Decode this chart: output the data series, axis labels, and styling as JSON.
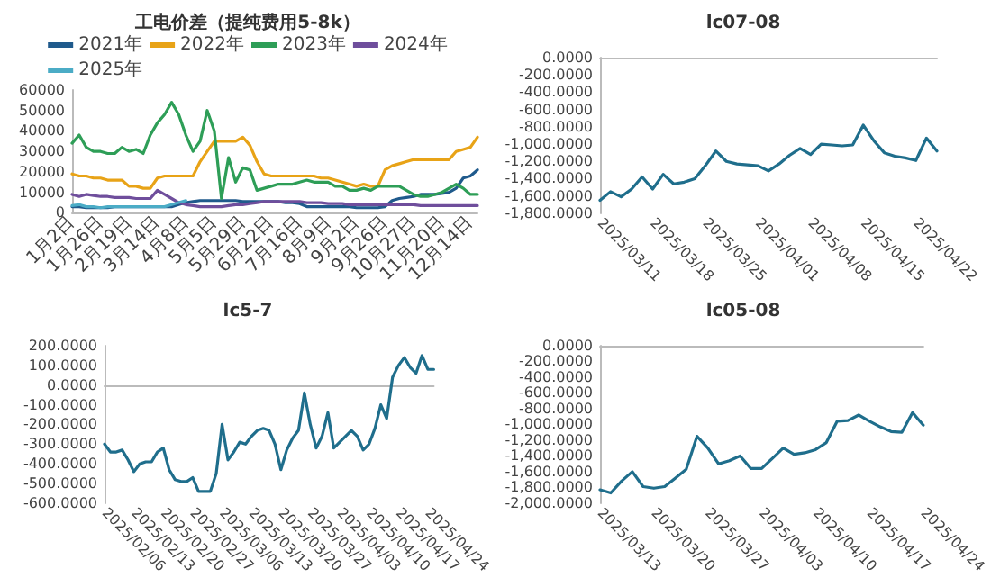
{
  "chart_data": [
    {
      "type": "line",
      "title": "工电价差（提纯费用5-8k）",
      "categories": [
        "1月2日",
        null,
        null,
        null,
        "1月26日",
        null,
        null,
        null,
        "2月19日",
        null,
        null,
        null,
        "3月14日",
        null,
        null,
        null,
        "4月8日",
        null,
        null,
        null,
        "5月5日",
        null,
        null,
        null,
        "5月29日",
        null,
        null,
        null,
        "6月22日",
        null,
        null,
        null,
        "7月16日",
        null,
        null,
        null,
        "8月9日",
        null,
        null,
        null,
        "9月2日",
        null,
        null,
        null,
        "9月26日",
        null,
        null,
        null,
        "10月27日",
        null,
        null,
        null,
        "11月20日",
        null,
        null,
        null,
        "12月14日",
        null
      ],
      "series": [
        {
          "name": "2021年",
          "color": "#1f5a8c",
          "values": [
            3000,
            3000,
            2500,
            2500,
            2500,
            2500,
            3000,
            3000,
            3000,
            3000,
            3000,
            3000,
            3000,
            3000,
            3000,
            4000,
            5000,
            5500,
            6000,
            6000,
            6000,
            6000,
            6000,
            6000,
            5500,
            5500,
            5500,
            5500,
            5500,
            5500,
            5000,
            5000,
            4500,
            3000,
            3000,
            3000,
            3000,
            3000,
            3000,
            3000,
            2500,
            2500,
            2500,
            2500,
            3000,
            6000,
            7000,
            7500,
            8000,
            9000,
            9000,
            9000,
            9500,
            10000,
            12000,
            17000,
            18000,
            21000
          ]
        },
        {
          "name": "2022年",
          "color": "#e8a317",
          "values": [
            19000,
            18000,
            18000,
            17000,
            17000,
            16000,
            16000,
            16000,
            13000,
            13000,
            12000,
            12000,
            17000,
            18000,
            18000,
            18000,
            18000,
            18000,
            25000,
            30000,
            35000,
            35000,
            35000,
            35000,
            37000,
            33000,
            25000,
            19000,
            18000,
            18000,
            18000,
            18000,
            18000,
            18000,
            18000,
            17000,
            17000,
            16000,
            15000,
            14000,
            13000,
            14000,
            13000,
            13000,
            21000,
            23000,
            24000,
            25000,
            26000,
            26000,
            26000,
            26000,
            26000,
            26000,
            30000,
            31000,
            32000,
            37000
          ]
        },
        {
          "name": "2023年",
          "color": "#2e9e57",
          "values": [
            34000,
            38000,
            32000,
            30000,
            30000,
            29000,
            29000,
            32000,
            30000,
            31000,
            29000,
            38000,
            44000,
            48000,
            54000,
            48000,
            38000,
            30000,
            35000,
            50000,
            40000,
            7000,
            27000,
            15000,
            22000,
            21000,
            11000,
            12000,
            13000,
            14000,
            14000,
            14000,
            15000,
            16000,
            15000,
            15000,
            15000,
            13000,
            13000,
            11000,
            11000,
            12000,
            11000,
            13000,
            13000,
            13000,
            13000,
            11000,
            9000,
            8000,
            8000,
            9000,
            10000,
            12000,
            14000,
            12000,
            9000,
            9000
          ]
        },
        {
          "name": "2024年",
          "color": "#6f4e9c",
          "values": [
            9000,
            8000,
            9000,
            8500,
            8000,
            8000,
            7500,
            7500,
            7500,
            7000,
            7000,
            7000,
            11000,
            9000,
            7000,
            5000,
            4000,
            3500,
            3000,
            3000,
            3000,
            3000,
            3500,
            4000,
            4000,
            4500,
            5000,
            5500,
            5500,
            5500,
            5500,
            5500,
            5500,
            5000,
            5000,
            5000,
            4500,
            4500,
            4500,
            4000,
            4000,
            4000,
            4000,
            4000,
            4000,
            4000,
            4000,
            4000,
            4000,
            3500,
            3500,
            3500,
            3500,
            3500,
            3500,
            3500,
            3500,
            3500
          ]
        },
        {
          "name": "2025年",
          "color": "#4bacc6",
          "values": [
            3500,
            4000,
            3000,
            3000,
            2500,
            3000,
            3000,
            3000,
            3000,
            3000,
            3000,
            3000,
            3000,
            3000,
            4000,
            5000,
            6000,
            null,
            null,
            null,
            null,
            null,
            null,
            null,
            null,
            null,
            null,
            null,
            null,
            null,
            null,
            null,
            null,
            null,
            null,
            null,
            null,
            null,
            null,
            null,
            null,
            null,
            null,
            null,
            null,
            null,
            null,
            null,
            null,
            null,
            null,
            null,
            null,
            null,
            null,
            null,
            null,
            null
          ]
        }
      ],
      "ylim": [
        0,
        60000
      ],
      "yticks": [
        0,
        10000,
        20000,
        30000,
        40000,
        50000,
        60000
      ],
      "legend": "top",
      "marker": "none"
    },
    {
      "type": "line",
      "title": "lc07-08",
      "categories": [
        "2025/03/11",
        null,
        null,
        null,
        null,
        "2025/03/18",
        null,
        null,
        null,
        null,
        "2025/03/25",
        null,
        null,
        null,
        null,
        "2025/04/01",
        null,
        null,
        null,
        null,
        "2025/04/08",
        null,
        null,
        null,
        null,
        "2025/04/15",
        null,
        null,
        null,
        null,
        "2025/04/22",
        null,
        null
      ],
      "series": [
        {
          "color": "#1f6e8c",
          "values": [
            -1650,
            -1550,
            -1610,
            -1520,
            -1380,
            -1520,
            -1350,
            -1460,
            -1440,
            -1400,
            -1250,
            -1080,
            -1200,
            -1230,
            -1240,
            -1250,
            -1310,
            -1230,
            -1130,
            -1050,
            -1120,
            -1000,
            -1010,
            -1020,
            -1010,
            -780,
            -960,
            -1100,
            -1140,
            -1160,
            -1190,
            -930,
            -1080
          ]
        }
      ],
      "ylim": [
        -1800,
        0
      ],
      "yticks": [
        {
          "value": 0,
          "label": "0.0000"
        },
        {
          "value": -200,
          "label": "-200.0000"
        },
        {
          "value": -400,
          "label": "-400.0000"
        },
        {
          "value": -600,
          "label": "-600.0000"
        },
        {
          "value": -800,
          "label": "-800.0000"
        },
        {
          "value": -1000,
          "label": "-1,000.0000"
        },
        {
          "value": -1200,
          "label": "-1,200.0000"
        },
        {
          "value": -1400,
          "label": "-1,400.0000"
        },
        {
          "value": -1600,
          "label": "-1,600.0000"
        },
        {
          "value": -1800,
          "label": "-1,800.0000"
        }
      ],
      "marker": "none"
    },
    {
      "type": "line",
      "title": "lc5-7",
      "categories": [
        "2025/02/06",
        null,
        null,
        null,
        null,
        "2025/02/13",
        null,
        null,
        null,
        null,
        "2025/02/20",
        null,
        null,
        null,
        null,
        "2025/02/27",
        null,
        null,
        null,
        null,
        "2025/03/06",
        null,
        null,
        null,
        null,
        "2025/03/13",
        null,
        null,
        null,
        null,
        "2025/03/20",
        null,
        null,
        null,
        null,
        "2025/03/27",
        null,
        null,
        null,
        null,
        "2025/04/03",
        null,
        null,
        null,
        null,
        "2025/04/10",
        null,
        null,
        null,
        null,
        "2025/04/17",
        null,
        null,
        null,
        null,
        "2025/04/24",
        null
      ],
      "series": [
        {
          "color": "#1f6e8c",
          "values": [
            -300,
            -340,
            -340,
            -330,
            -380,
            -440,
            -400,
            -390,
            -390,
            -340,
            -320,
            -430,
            -480,
            -490,
            -490,
            -470,
            -540,
            -540,
            -540,
            -450,
            -200,
            -380,
            -340,
            -290,
            -300,
            -260,
            -230,
            -220,
            -230,
            -300,
            -430,
            -330,
            -270,
            -230,
            -40,
            -200,
            -320,
            -260,
            -140,
            -320,
            -290,
            -260,
            -230,
            -260,
            -330,
            -300,
            -220,
            -100,
            -170,
            40,
            100,
            140,
            90,
            60,
            150,
            80,
            80
          ]
        }
      ],
      "ylim": [
        -600,
        200
      ],
      "yticks": [
        {
          "value": 200,
          "label": "200.0000"
        },
        {
          "value": 100,
          "label": "100.0000"
        },
        {
          "value": 0,
          "label": "0.0000"
        },
        {
          "value": -100,
          "label": "-100.0000"
        },
        {
          "value": -200,
          "label": "-200.0000"
        },
        {
          "value": -300,
          "label": "-300.0000"
        },
        {
          "value": -400,
          "label": "-400.0000"
        },
        {
          "value": -500,
          "label": "-500.0000"
        },
        {
          "value": -600,
          "label": "-600.0000"
        }
      ],
      "marker": "none"
    },
    {
      "type": "line",
      "title": "lc05-08",
      "categories": [
        "2025/03/13",
        null,
        null,
        null,
        null,
        "2025/03/20",
        null,
        null,
        null,
        null,
        "2025/03/27",
        null,
        null,
        null,
        null,
        "2025/04/03",
        null,
        null,
        null,
        null,
        "2025/04/10",
        null,
        null,
        null,
        null,
        "2025/04/17",
        null,
        null,
        null,
        null,
        "2025/04/24"
      ],
      "series": [
        {
          "color": "#1f6e8c",
          "values": [
            -1830,
            -1870,
            -1720,
            -1600,
            -1790,
            -1810,
            -1790,
            -1680,
            -1570,
            -1150,
            -1300,
            -1500,
            -1460,
            -1400,
            -1560,
            -1560,
            -1430,
            -1300,
            -1380,
            -1360,
            -1320,
            -1230,
            -960,
            -950,
            -880,
            -960,
            -1030,
            -1090,
            -1100,
            -850,
            -1010
          ]
        }
      ],
      "ylim": [
        -2000,
        0
      ],
      "yticks": [
        {
          "value": 0,
          "label": "0.0000"
        },
        {
          "value": -200,
          "label": "-200.0000"
        },
        {
          "value": -400,
          "label": "-400.0000"
        },
        {
          "value": -600,
          "label": "-600.0000"
        },
        {
          "value": -800,
          "label": "-800.0000"
        },
        {
          "value": -1000,
          "label": "-1,000.0000"
        },
        {
          "value": -1200,
          "label": "-1,200.0000"
        },
        {
          "value": -1400,
          "label": "-1,400.0000"
        },
        {
          "value": -1600,
          "label": "-1,600.0000"
        },
        {
          "value": -1800,
          "label": "-1,800.0000"
        },
        {
          "value": -2000,
          "label": "-2,000.0000"
        }
      ],
      "marker": "none"
    }
  ]
}
